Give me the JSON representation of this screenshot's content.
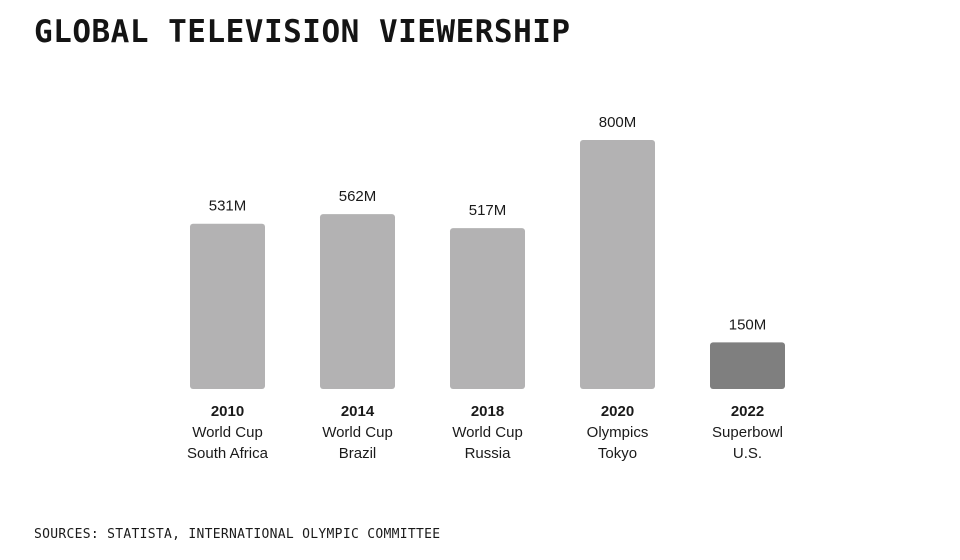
{
  "title": "GLOBAL TELEVISION VIEWERSHIP",
  "source": "SOURCES: STATISTA, INTERNATIONAL OLYMPIC COMMITTEE",
  "chart_data": {
    "type": "bar",
    "title": "GLOBAL TELEVISION VIEWERSHIP",
    "xlabel": "",
    "ylabel": "",
    "grid": false,
    "categories": [
      {
        "year": "2010",
        "event": "World Cup",
        "place": "South Africa"
      },
      {
        "year": "2014",
        "event": "World Cup",
        "place": "Brazil"
      },
      {
        "year": "2018",
        "event": "World Cup",
        "place": "Russia"
      },
      {
        "year": "2020",
        "event": "Olympics",
        "place": "Tokyo"
      },
      {
        "year": "2022",
        "event": "Superbowl",
        "place": "U.S."
      }
    ],
    "values": [
      531,
      562,
      517,
      800,
      150
    ],
    "value_labels": [
      "531M",
      "562M",
      "517M",
      "800M",
      "150M"
    ],
    "colors": [
      "#b3b2b3",
      "#b3b2b3",
      "#b3b2b3",
      "#b3b2b3",
      "#7f7f7f"
    ]
  }
}
